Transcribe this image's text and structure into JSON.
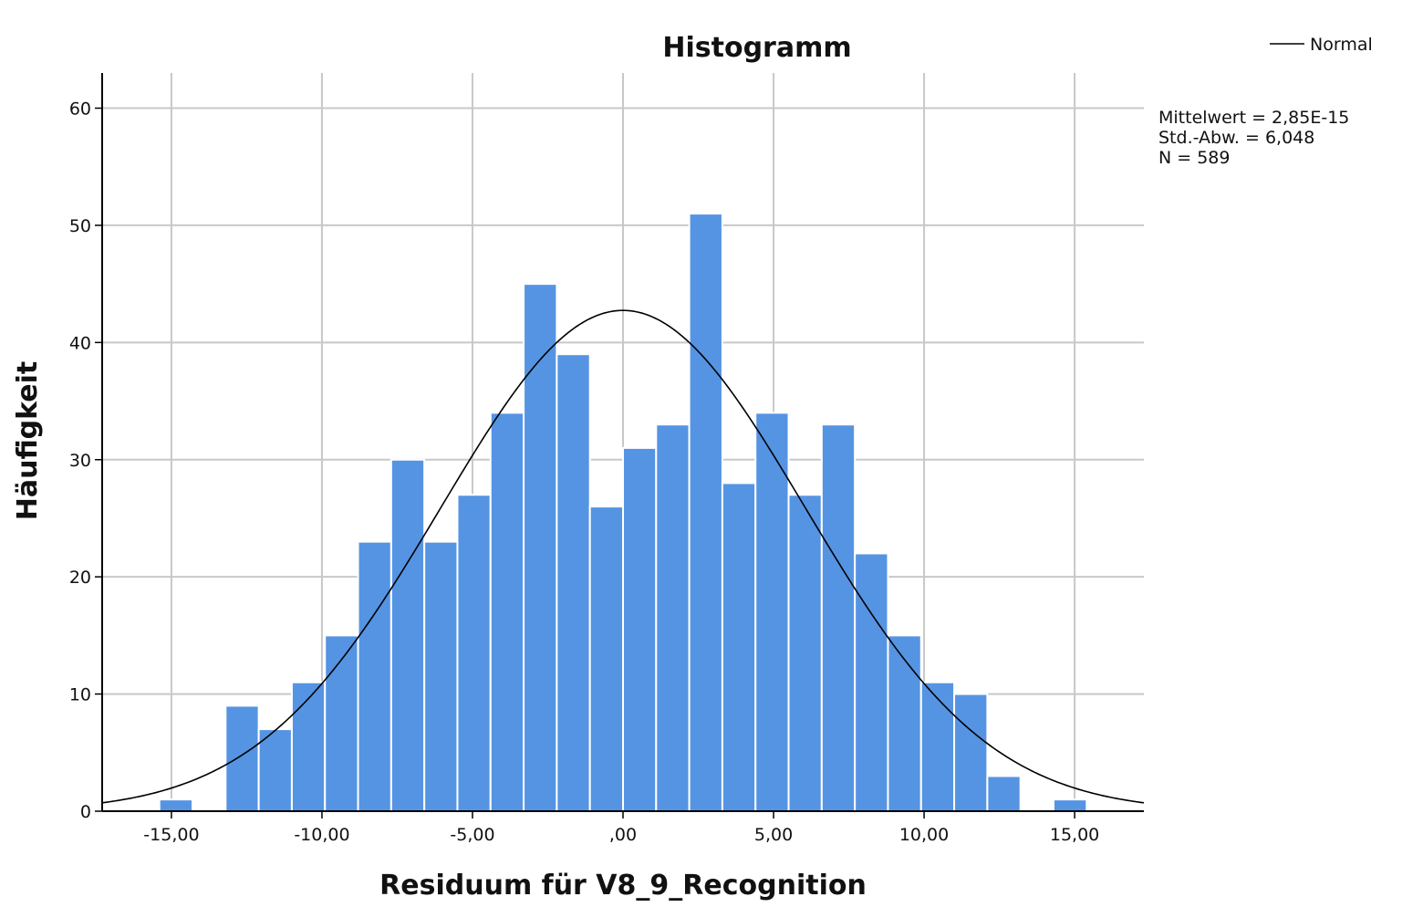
{
  "chart_data": {
    "type": "bar",
    "title": "Histogramm",
    "xlabel": "Residuum für V8_9_Recognition",
    "ylabel": "Häufigkeit",
    "xlim": [
      -17.3,
      17.3
    ],
    "ylim": [
      0,
      63
    ],
    "x_ticks": [
      -15,
      -10,
      -5,
      0,
      5,
      10,
      15
    ],
    "x_tick_labels": [
      "-15,00",
      "-10,00",
      "-5,00",
      ",00",
      "5,00",
      "10,00",
      "15,00"
    ],
    "y_ticks": [
      0,
      10,
      20,
      30,
      40,
      50,
      60
    ],
    "y_tick_labels": [
      "0",
      "10",
      "20",
      "30",
      "40",
      "50",
      "60"
    ],
    "grid": true,
    "bin_width": 1.1,
    "bins": [
      {
        "start": -15.4,
        "value": 1
      },
      {
        "start": -14.3,
        "value": 0
      },
      {
        "start": -13.2,
        "value": 9
      },
      {
        "start": -12.1,
        "value": 7
      },
      {
        "start": -11.0,
        "value": 11
      },
      {
        "start": -9.9,
        "value": 15
      },
      {
        "start": -8.8,
        "value": 23
      },
      {
        "start": -7.7,
        "value": 30
      },
      {
        "start": -6.6,
        "value": 23
      },
      {
        "start": -5.5,
        "value": 27
      },
      {
        "start": -4.4,
        "value": 34
      },
      {
        "start": -3.3,
        "value": 45
      },
      {
        "start": -2.2,
        "value": 39
      },
      {
        "start": -1.1,
        "value": 26
      },
      {
        "start": 0.0,
        "value": 31
      },
      {
        "start": 1.1,
        "value": 33
      },
      {
        "start": 2.2,
        "value": 51
      },
      {
        "start": 3.3,
        "value": 28
      },
      {
        "start": 4.4,
        "value": 34
      },
      {
        "start": 5.5,
        "value": 27
      },
      {
        "start": 6.6,
        "value": 33
      },
      {
        "start": 7.7,
        "value": 22
      },
      {
        "start": 8.8,
        "value": 15
      },
      {
        "start": 9.9,
        "value": 11
      },
      {
        "start": 11.0,
        "value": 10
      },
      {
        "start": 12.1,
        "value": 3
      },
      {
        "start": 13.2,
        "value": 0
      },
      {
        "start": 14.3,
        "value": 1
      }
    ],
    "normal_curve": {
      "mean": 0,
      "std": 6.048,
      "n": 589
    },
    "bar_color": "#5594e3",
    "curve_color": "#000000",
    "legend": {
      "entries": [
        "Normal"
      ],
      "placement": "top-right"
    },
    "stats": [
      "Mittelwert = 2,85E-15",
      "Std.-Abw. = 6,048",
      "N = 589"
    ]
  }
}
